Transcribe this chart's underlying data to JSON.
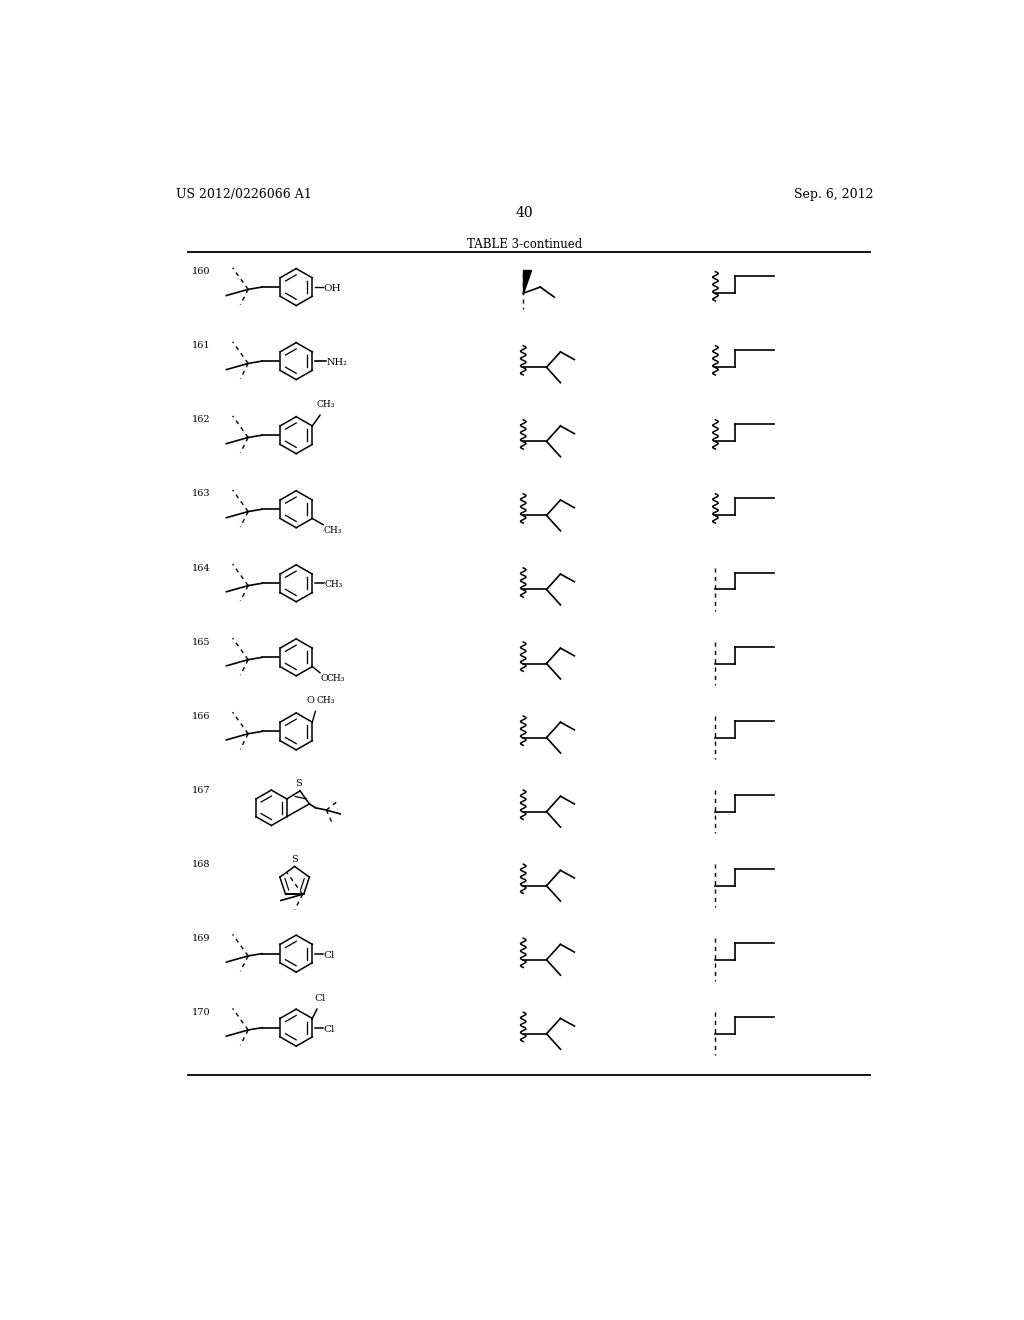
{
  "title_left": "US 2012/0226066 A1",
  "title_right": "Sep. 6, 2012",
  "page_number": "40",
  "table_title": "TABLE 3-continued",
  "rows": [
    {
      "num": "160",
      "sub1": "4-OH",
      "col2": "wedge_dashed",
      "col3": "wavy_step"
    },
    {
      "num": "161",
      "sub1": "4-CH2NH2",
      "col2": "wavy_isobutyl",
      "col3": "wavy_step"
    },
    {
      "num": "162",
      "sub1": "2-CH3",
      "col2": "wavy_isobutyl",
      "col3": "wavy_step"
    },
    {
      "num": "163",
      "sub1": "3-CH3",
      "col2": "wavy_isobutyl",
      "col3": "wavy_step"
    },
    {
      "num": "164",
      "sub1": "4-CH3",
      "col2": "wavy_isobutyl",
      "col3": "dash_step"
    },
    {
      "num": "165",
      "sub1": "3-OCH3",
      "col2": "wavy_isobutyl",
      "col3": "dash_step"
    },
    {
      "num": "166",
      "sub1": "2-OCH3",
      "col2": "wavy_isobutyl",
      "col3": "dash_step"
    },
    {
      "num": "167",
      "sub1": "benzothiophene",
      "col2": "wavy_isobutyl",
      "col3": "dash_step"
    },
    {
      "num": "168",
      "sub1": "thiophene",
      "col2": "wavy_isobutyl",
      "col3": "dash_step"
    },
    {
      "num": "169",
      "sub1": "4-Cl",
      "col2": "wavy_isobutyl",
      "col3": "dash_step"
    },
    {
      "num": "170",
      "sub1": "2,4-diCl",
      "col2": "wavy_isobutyl",
      "col3": "dash_step"
    }
  ],
  "bg_color": "#ffffff",
  "line_color": "#000000"
}
